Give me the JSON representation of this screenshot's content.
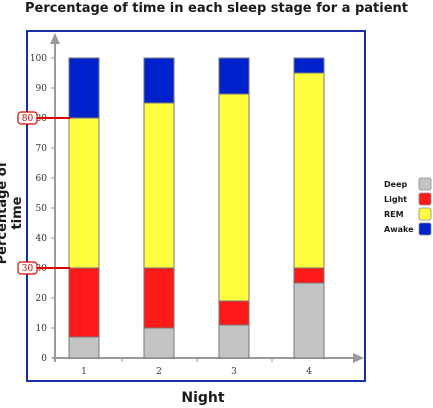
{
  "chart_data": {
    "type": "bar",
    "stacked": true,
    "title": "Percentage of time in each sleep stage for a patient",
    "xlabel": "Night",
    "ylabel": "Percentage of time",
    "categories": [
      "1",
      "2",
      "3",
      "4"
    ],
    "ylim": [
      0,
      100
    ],
    "yticks": [
      0,
      10,
      20,
      30,
      40,
      50,
      60,
      70,
      80,
      90,
      100
    ],
    "series": [
      {
        "name": "Deep",
        "color": "#c4c4c4",
        "values": [
          7,
          10,
          11,
          25
        ]
      },
      {
        "name": "Light",
        "color": "#ff1a1a",
        "values": [
          23,
          20,
          8,
          5
        ]
      },
      {
        "name": "REM",
        "color": "#ffff40",
        "values": [
          50,
          55,
          69,
          65
        ]
      },
      {
        "name": "Awake",
        "color": "#0022cc",
        "values": [
          20,
          15,
          12,
          5
        ]
      }
    ],
    "highlighted_ticks": [
      80,
      30
    ],
    "legend_position": "right",
    "grid": false,
    "frame_color": "#1a2fa8",
    "highlight_color": "#e00000"
  }
}
